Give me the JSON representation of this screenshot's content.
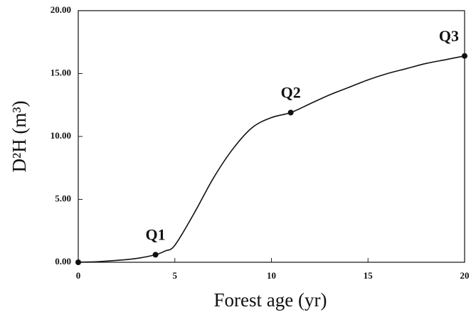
{
  "chart_data": {
    "type": "line",
    "xlabel": "Forest age (yr)",
    "ylabel": "D²H (m³)",
    "xlim": [
      0,
      20
    ],
    "xticks": [
      0,
      5,
      10,
      15,
      20
    ],
    "ylim": [
      0,
      20
    ],
    "yticks": [
      {
        "value": 0,
        "label": "0.00"
      },
      {
        "value": 5,
        "label": "5.00"
      },
      {
        "value": 10,
        "label": "10.00"
      },
      {
        "value": 15,
        "label": "15.00"
      },
      {
        "value": 20,
        "label": "20.00"
      }
    ],
    "color": "#111111",
    "line": {
      "x": [
        0,
        1,
        2,
        3,
        4,
        4.5,
        5,
        6,
        7,
        8,
        9,
        10,
        11,
        12,
        13,
        14,
        15,
        16,
        17,
        18,
        19,
        20
      ],
      "values": [
        0,
        0.05,
        0.15,
        0.3,
        0.6,
        0.9,
        1.35,
        3.9,
        6.7,
        9.0,
        10.7,
        11.5,
        11.9,
        12.6,
        13.3,
        13.9,
        14.5,
        15.0,
        15.4,
        15.8,
        16.1,
        16.4
      ]
    },
    "points": {
      "x": [
        0,
        4,
        11,
        20
      ],
      "values": [
        0,
        0.6,
        11.9,
        16.4
      ],
      "labels": [
        null,
        "Q1",
        "Q2",
        "Q3"
      ]
    }
  }
}
